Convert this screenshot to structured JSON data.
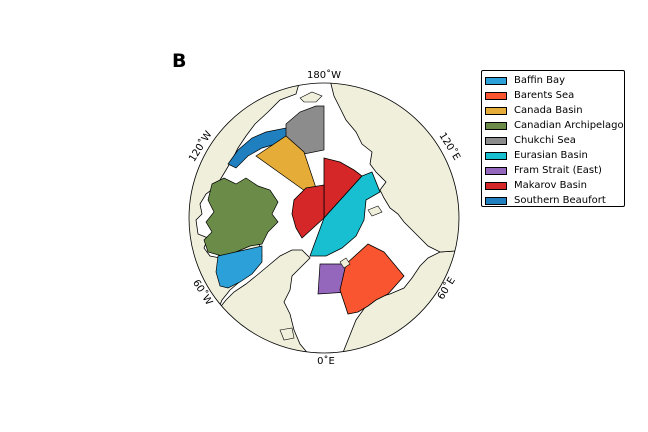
{
  "panel_label": "B",
  "map": {
    "projection": "north-polar-stereographic",
    "ocean_color": "#ffffff",
    "land_color": "#efefdc",
    "coastline_color": "#000000",
    "longitude_labels": {
      "top": "180˚W",
      "upper_left": "120˚W",
      "upper_right": "120˚E",
      "lower_left": "60˚W",
      "lower_right": "60˚E",
      "bottom": "0˚E"
    }
  },
  "legend": {
    "placement": "right",
    "items": [
      {
        "name": "Baffin Bay",
        "color": "#2ca0d8"
      },
      {
        "name": "Barents Sea",
        "color": "#fa5531"
      },
      {
        "name": "Canada Basin",
        "color": "#e6ac38"
      },
      {
        "name": "Canadian Archipelago",
        "color": "#6a8c48"
      },
      {
        "name": "Chukchi Sea",
        "color": "#8c8c8c"
      },
      {
        "name": "Eurasian Basin",
        "color": "#18bfd0"
      },
      {
        "name": "Fram Strait (East)",
        "color": "#9467bd"
      },
      {
        "name": "Makarov Basin",
        "color": "#d62728"
      },
      {
        "name": "Southern Beaufort",
        "color": "#1f7fbf"
      }
    ]
  }
}
